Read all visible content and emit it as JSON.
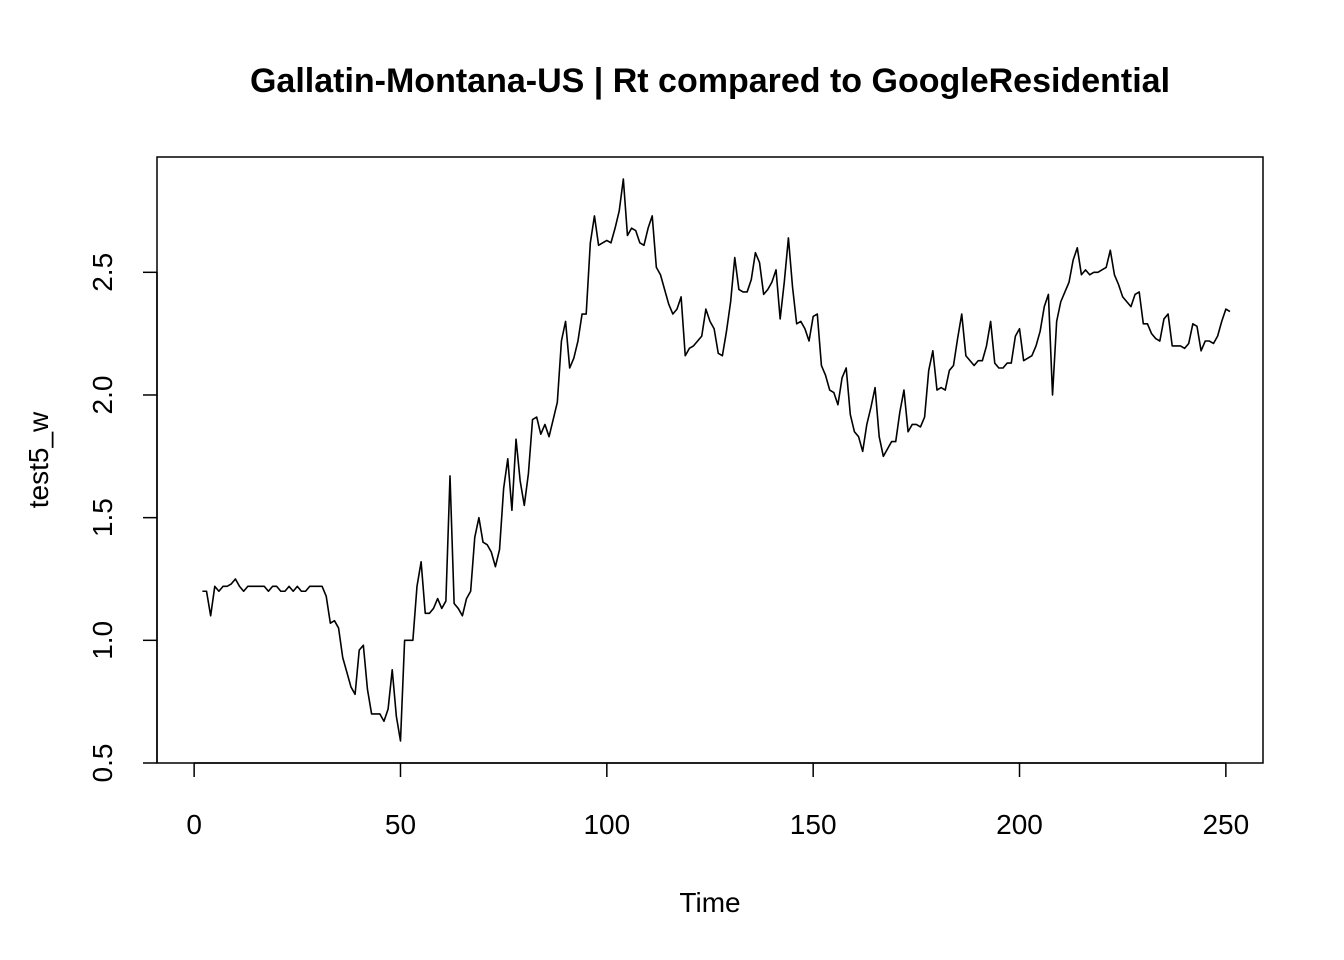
{
  "chart_data": {
    "type": "line",
    "title": "Gallatin-Montana-US | Rt compared to GoogleResidential",
    "xlabel": "Time",
    "ylabel": "test5_w",
    "xlim": [
      -9,
      259
    ],
    "ylim": [
      0.5,
      2.97
    ],
    "x_ticks": [
      0,
      50,
      100,
      150,
      200,
      250
    ],
    "x_tick_labels": [
      "0",
      "50",
      "100",
      "150",
      "200",
      "250"
    ],
    "y_ticks": [
      0.5,
      1.0,
      1.5,
      2.0,
      2.5
    ],
    "y_tick_labels": [
      "0.5",
      "1.0",
      "1.5",
      "2.0",
      "2.5"
    ],
    "grid": false,
    "series": [
      {
        "x_start": 2,
        "values": [
          1.2,
          1.2,
          1.1,
          1.22,
          1.2,
          1.22,
          1.22,
          1.23,
          1.25,
          1.22,
          1.2,
          1.22,
          1.22,
          1.22,
          1.22,
          1.22,
          1.2,
          1.22,
          1.22,
          1.2,
          1.2,
          1.22,
          1.2,
          1.22,
          1.2,
          1.2,
          1.22,
          1.22,
          1.22,
          1.22,
          1.18,
          1.07,
          1.08,
          1.05,
          0.93,
          0.87,
          0.81,
          0.78,
          0.96,
          0.98,
          0.8,
          0.7,
          0.7,
          0.7,
          0.67,
          0.72,
          0.88,
          0.69,
          0.59,
          1.0,
          1.0,
          1.0,
          1.22,
          1.32,
          1.11,
          1.11,
          1.13,
          1.17,
          1.13,
          1.16,
          1.67,
          1.15,
          1.13,
          1.1,
          1.17,
          1.2,
          1.42,
          1.5,
          1.4,
          1.39,
          1.36,
          1.3,
          1.37,
          1.62,
          1.74,
          1.53,
          1.82,
          1.65,
          1.55,
          1.68,
          1.9,
          1.91,
          1.84,
          1.88,
          1.83,
          1.9,
          1.97,
          2.22,
          2.3,
          2.11,
          2.15,
          2.22,
          2.33,
          2.33,
          2.62,
          2.73,
          2.61,
          2.62,
          2.63,
          2.62,
          2.68,
          2.75,
          2.88,
          2.65,
          2.68,
          2.67,
          2.62,
          2.61,
          2.68,
          2.73,
          2.52,
          2.49,
          2.43,
          2.37,
          2.33,
          2.35,
          2.4,
          2.16,
          2.19,
          2.2,
          2.22,
          2.24,
          2.35,
          2.3,
          2.27,
          2.17,
          2.16,
          2.26,
          2.38,
          2.56,
          2.43,
          2.42,
          2.42,
          2.47,
          2.58,
          2.54,
          2.41,
          2.43,
          2.46,
          2.51,
          2.31,
          2.46,
          2.64,
          2.44,
          2.29,
          2.3,
          2.27,
          2.22,
          2.32,
          2.33,
          2.12,
          2.08,
          2.02,
          2.01,
          1.96,
          2.07,
          2.11,
          1.92,
          1.85,
          1.83,
          1.77,
          1.88,
          1.95,
          2.03,
          1.83,
          1.75,
          1.78,
          1.81,
          1.81,
          1.93,
          2.02,
          1.85,
          1.88,
          1.88,
          1.87,
          1.91,
          2.1,
          2.18,
          2.02,
          2.03,
          2.02,
          2.1,
          2.12,
          2.23,
          2.33,
          2.16,
          2.14,
          2.12,
          2.14,
          2.14,
          2.2,
          2.3,
          2.13,
          2.11,
          2.11,
          2.13,
          2.13,
          2.24,
          2.27,
          2.14,
          2.15,
          2.16,
          2.2,
          2.26,
          2.36,
          2.41,
          2.0,
          2.3,
          2.38,
          2.42,
          2.46,
          2.55,
          2.6,
          2.49,
          2.51,
          2.49,
          2.5,
          2.5,
          2.51,
          2.52,
          2.59,
          2.49,
          2.45,
          2.4,
          2.38,
          2.36,
          2.41,
          2.42,
          2.29,
          2.29,
          2.25,
          2.23,
          2.22,
          2.31,
          2.33,
          2.2,
          2.2,
          2.2,
          2.19,
          2.21,
          2.29,
          2.28,
          2.18,
          2.22,
          2.22,
          2.21,
          2.24,
          2.3,
          2.35,
          2.34
        ]
      }
    ]
  }
}
